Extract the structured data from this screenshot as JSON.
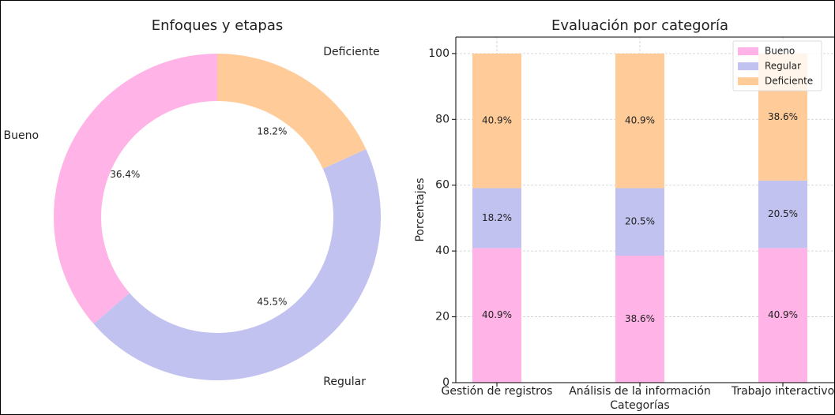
{
  "chart_data": [
    {
      "type": "pie",
      "title": "Enfoques y etapas",
      "categories": [
        "Bueno",
        "Regular",
        "Deficiente"
      ],
      "values": [
        36.4,
        45.5,
        18.2
      ],
      "value_labels": [
        "36.4%",
        "45.5%",
        "18.2%"
      ],
      "colors": [
        "#ffb3e6",
        "#c2c2f0",
        "#ffcc99"
      ]
    },
    {
      "type": "bar",
      "stacked": true,
      "title": "Evaluación por categoría",
      "xlabel": "Categorías",
      "ylabel": "Porcentajes",
      "categories": [
        "Gestión de registros",
        "Análisis de la información",
        "Trabajo interactivo"
      ],
      "series": [
        {
          "name": "Bueno",
          "color": "#ffb3e6",
          "values": [
            40.9,
            38.6,
            40.9
          ],
          "value_labels": [
            "40.9%",
            "38.6%",
            "40.9%"
          ]
        },
        {
          "name": "Regular",
          "color": "#c2c2f0",
          "values": [
            18.2,
            20.5,
            20.5
          ],
          "value_labels": [
            "18.2%",
            "20.5%",
            "20.5%"
          ]
        },
        {
          "name": "Deficiente",
          "color": "#ffcc99",
          "values": [
            40.9,
            40.9,
            38.6
          ],
          "value_labels": [
            "40.9%",
            "40.9%",
            "38.6%"
          ]
        }
      ],
      "ylim": [
        0,
        105
      ],
      "yticks": [
        0,
        20,
        40,
        60,
        80,
        100
      ],
      "grid": true,
      "legend": "upper right"
    }
  ]
}
